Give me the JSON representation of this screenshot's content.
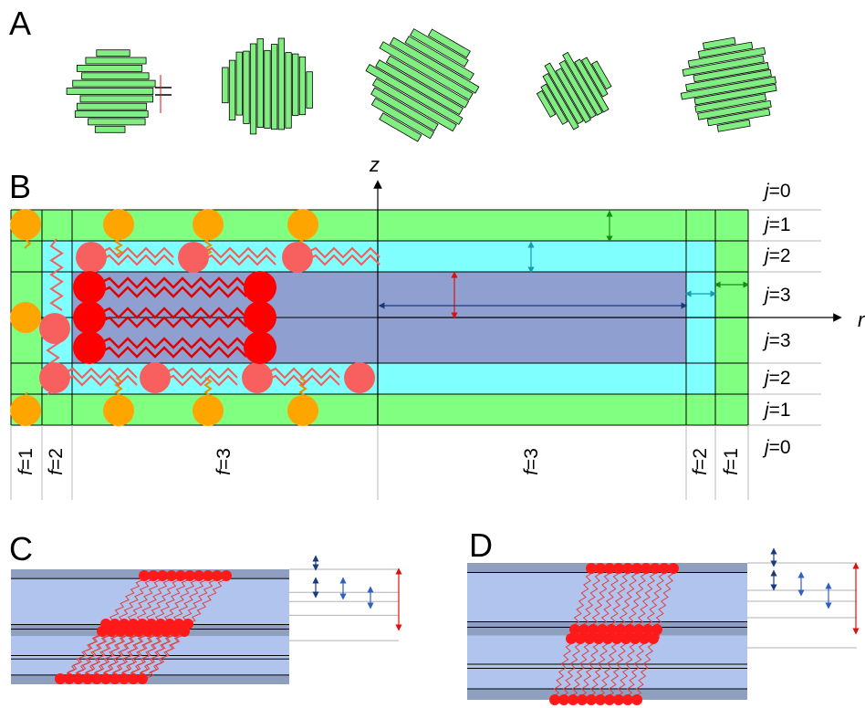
{
  "panels": {
    "a": "A",
    "b": "B",
    "c": "C",
    "d": "D"
  },
  "axes": {
    "z": "z",
    "r": "r"
  },
  "layer_labels": {
    "left": [
      {
        "sym": "j",
        "val": "=0"
      },
      {
        "sym": "j",
        "val": "=1"
      },
      {
        "sym": "j",
        "val": "=2"
      },
      {
        "sym": "j",
        "val": "=3"
      },
      {
        "sym": "j",
        "val": "=3"
      },
      {
        "sym": "j",
        "val": "=2"
      },
      {
        "sym": "j",
        "val": "=1"
      },
      {
        "sym": "j",
        "val": "=0"
      }
    ]
  },
  "column_labels": [
    {
      "sym": "f",
      "val": "=1"
    },
    {
      "sym": "f",
      "val": "=2"
    },
    {
      "sym": "f",
      "val": "=3"
    },
    {
      "sym": "f",
      "val": "=3"
    },
    {
      "sym": "f",
      "val": "=2"
    },
    {
      "sym": "f",
      "val": "=1"
    }
  ],
  "colors": {
    "headgroup_region": "#80ff80",
    "tail_region": "#80ffff",
    "core_region": "#8f9fd0",
    "micelle_disc": "#80ee80",
    "lipid_head_outer": "#ffa500",
    "lipid_head_inner": "#f86060",
    "core_head": "#ff0000",
    "tail_line": "#f06060",
    "arrow_green": "#1a8a1a",
    "arrow_teal": "#1a9aaa",
    "arrow_red": "#e01010",
    "arrow_navy": "#1a3a80",
    "bilayer_light": "#b0c4ee",
    "bilayer_dark": "#8f9fbf"
  }
}
